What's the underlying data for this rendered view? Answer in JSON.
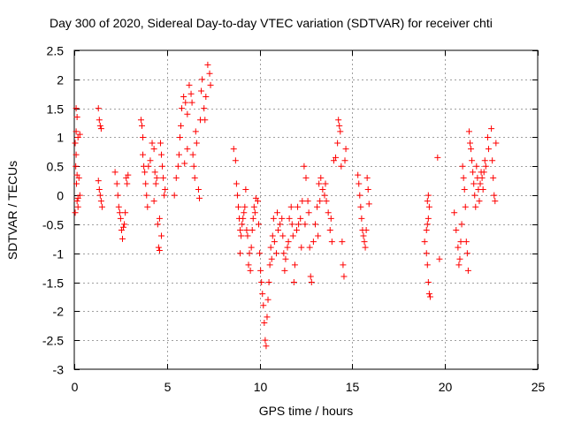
{
  "chart_data": {
    "type": "scatter",
    "title": "Day 300 of 2020, Sidereal Day-to-day VTEC variation (SDTVAR) for receiver chti",
    "xlabel": "GPS time / hours",
    "ylabel": "SDTVAR / TECUs",
    "xlim": [
      0,
      25
    ],
    "ylim": [
      -3,
      2.5
    ],
    "xticks": [
      0,
      5,
      10,
      15,
      20,
      25
    ],
    "xtick_labels": [
      "0",
      "5",
      "10",
      "15",
      "20",
      "25"
    ],
    "yticks": [
      -3,
      -2.5,
      -2,
      -1.5,
      -1,
      -0.5,
      0,
      0.5,
      1,
      1.5,
      2,
      2.5
    ],
    "ytick_labels": [
      "-3",
      "-2.5",
      "-2",
      "-1.5",
      "-1",
      "-0.5",
      "0",
      "0.5",
      "1",
      "1.5",
      "2",
      "2.5"
    ],
    "grid": true,
    "marker": "+",
    "color": "#ff0000",
    "series": [
      {
        "name": "SDTVAR",
        "points": [
          [
            0.05,
            -0.3
          ],
          [
            0.1,
            1.5
          ],
          [
            0.15,
            1.35
          ],
          [
            0.1,
            1.1
          ],
          [
            0.2,
            1.0
          ],
          [
            0.3,
            1.05
          ],
          [
            0.08,
            0.5
          ],
          [
            0.12,
            0.2
          ],
          [
            0.15,
            -0.1
          ],
          [
            0.2,
            -0.2
          ],
          [
            0.05,
            0.9
          ],
          [
            0.1,
            0.7
          ],
          [
            0.25,
            0.3
          ],
          [
            0.3,
            0.0
          ],
          [
            0.2,
            -0.05
          ],
          [
            0.15,
            0.35
          ],
          [
            1.3,
            1.5
          ],
          [
            1.35,
            1.3
          ],
          [
            1.4,
            1.2
          ],
          [
            1.45,
            1.15
          ],
          [
            1.3,
            0.25
          ],
          [
            1.35,
            0.1
          ],
          [
            1.4,
            0.0
          ],
          [
            1.45,
            -0.1
          ],
          [
            1.5,
            -0.2
          ],
          [
            2.2,
            0.4
          ],
          [
            2.3,
            0.2
          ],
          [
            2.35,
            0.0
          ],
          [
            2.4,
            -0.2
          ],
          [
            2.5,
            -0.4
          ],
          [
            2.55,
            -0.6
          ],
          [
            2.6,
            -0.75
          ],
          [
            2.7,
            -0.5
          ],
          [
            2.75,
            -0.3
          ],
          [
            2.8,
            0.3
          ],
          [
            2.85,
            0.2
          ],
          [
            2.9,
            0.35
          ],
          [
            2.65,
            -0.55
          ],
          [
            2.45,
            -0.3
          ],
          [
            3.6,
            1.3
          ],
          [
            3.65,
            1.2
          ],
          [
            3.7,
            1.0
          ],
          [
            3.7,
            0.7
          ],
          [
            3.75,
            0.5
          ],
          [
            3.8,
            0.4
          ],
          [
            3.85,
            0.2
          ],
          [
            3.9,
            0.0
          ],
          [
            3.95,
            -0.2
          ],
          [
            4.0,
            0.5
          ],
          [
            4.1,
            0.6
          ],
          [
            4.2,
            0.9
          ],
          [
            4.3,
            0.8
          ],
          [
            4.35,
            0.4
          ],
          [
            4.4,
            0.2
          ],
          [
            4.45,
            0.3
          ],
          [
            4.5,
            -0.5
          ],
          [
            4.55,
            -0.9
          ],
          [
            4.6,
            -0.95
          ],
          [
            4.65,
            0.9
          ],
          [
            4.7,
            0.7
          ],
          [
            4.75,
            0.5
          ],
          [
            4.8,
            0.3
          ],
          [
            4.85,
            0.0
          ],
          [
            4.9,
            0.1
          ],
          [
            4.3,
            -0.1
          ],
          [
            4.6,
            -0.4
          ],
          [
            4.7,
            -0.7
          ],
          [
            5.4,
            0.0
          ],
          [
            5.5,
            0.3
          ],
          [
            5.6,
            0.5
          ],
          [
            5.7,
            1.0
          ],
          [
            5.75,
            1.2
          ],
          [
            5.8,
            1.5
          ],
          [
            5.9,
            1.7
          ],
          [
            6.0,
            1.6
          ],
          [
            6.1,
            1.4
          ],
          [
            6.2,
            1.9
          ],
          [
            6.3,
            1.75
          ],
          [
            6.35,
            1.6
          ],
          [
            6.4,
            0.7
          ],
          [
            6.45,
            0.5
          ],
          [
            6.5,
            0.3
          ],
          [
            6.55,
            1.1
          ],
          [
            6.6,
            0.9
          ],
          [
            6.7,
            0.1
          ],
          [
            6.75,
            -0.05
          ],
          [
            6.8,
            1.3
          ],
          [
            6.85,
            1.8
          ],
          [
            6.9,
            2.0
          ],
          [
            7.0,
            1.5
          ],
          [
            7.05,
            1.3
          ],
          [
            7.1,
            1.7
          ],
          [
            7.2,
            2.25
          ],
          [
            7.3,
            2.1
          ],
          [
            7.35,
            1.9
          ],
          [
            6.1,
            0.8
          ],
          [
            5.95,
            0.55
          ],
          [
            5.65,
            0.7
          ],
          [
            8.6,
            0.8
          ],
          [
            8.7,
            0.6
          ],
          [
            8.75,
            0.2
          ],
          [
            8.8,
            0.0
          ],
          [
            8.85,
            -0.2
          ],
          [
            8.9,
            -0.4
          ],
          [
            8.95,
            -0.6
          ],
          [
            9.0,
            -0.7
          ],
          [
            9.05,
            -0.5
          ],
          [
            9.1,
            -0.4
          ],
          [
            9.15,
            -0.3
          ],
          [
            9.2,
            -0.2
          ],
          [
            9.3,
            -0.6
          ],
          [
            9.35,
            -0.7
          ],
          [
            9.4,
            -1.2
          ],
          [
            9.5,
            -1.3
          ],
          [
            9.55,
            -0.9
          ],
          [
            9.6,
            -0.6
          ],
          [
            9.65,
            -0.4
          ],
          [
            9.7,
            -0.2
          ],
          [
            9.8,
            -0.05
          ],
          [
            9.9,
            -0.1
          ],
          [
            9.95,
            -0.5
          ],
          [
            10.0,
            -1.0
          ],
          [
            10.05,
            -1.3
          ],
          [
            10.1,
            -1.5
          ],
          [
            10.15,
            -1.7
          ],
          [
            10.2,
            -1.9
          ],
          [
            10.25,
            -2.2
          ],
          [
            10.3,
            -2.5
          ],
          [
            10.35,
            -2.6
          ],
          [
            10.4,
            -2.1
          ],
          [
            10.45,
            -1.8
          ],
          [
            10.5,
            -1.5
          ],
          [
            10.55,
            -1.2
          ],
          [
            10.6,
            -0.9
          ],
          [
            10.7,
            -0.7
          ],
          [
            10.8,
            -0.8
          ],
          [
            10.9,
            -1.0
          ],
          [
            11.0,
            -0.6
          ],
          [
            11.1,
            -0.5
          ],
          [
            11.2,
            -0.4
          ],
          [
            11.3,
            -1.0
          ],
          [
            11.4,
            -1.1
          ],
          [
            11.5,
            -0.9
          ],
          [
            11.6,
            -0.4
          ],
          [
            11.7,
            -0.2
          ],
          [
            11.8,
            -0.7
          ],
          [
            11.9,
            -1.2
          ],
          [
            12.0,
            -0.6
          ],
          [
            12.1,
            -0.5
          ],
          [
            12.2,
            -0.4
          ],
          [
            12.3,
            -0.1
          ],
          [
            12.4,
            0.5
          ],
          [
            12.5,
            0.3
          ],
          [
            12.6,
            -0.1
          ],
          [
            12.7,
            -0.9
          ],
          [
            12.75,
            -1.4
          ],
          [
            12.8,
            -1.5
          ],
          [
            12.9,
            -0.8
          ],
          [
            13.0,
            -0.5
          ],
          [
            13.1,
            -0.2
          ],
          [
            13.2,
            0.2
          ],
          [
            13.3,
            0.3
          ],
          [
            13.4,
            0.1
          ],
          [
            13.5,
            0.0
          ],
          [
            13.6,
            -0.1
          ],
          [
            13.7,
            -0.3
          ],
          [
            13.8,
            -0.6
          ],
          [
            13.9,
            -0.8
          ],
          [
            14.0,
            0.6
          ],
          [
            14.1,
            0.65
          ],
          [
            14.2,
            0.9
          ],
          [
            14.25,
            1.3
          ],
          [
            14.3,
            1.2
          ],
          [
            14.35,
            1.1
          ],
          [
            14.4,
            0.5
          ],
          [
            14.45,
            -0.8
          ],
          [
            14.5,
            -1.2
          ],
          [
            14.55,
            -1.4
          ],
          [
            14.6,
            0.6
          ],
          [
            14.65,
            0.8
          ],
          [
            10.75,
            -0.4
          ],
          [
            11.25,
            -0.7
          ],
          [
            11.75,
            -0.5
          ],
          [
            12.25,
            -0.9
          ],
          [
            9.25,
            0.1
          ],
          [
            9.75,
            -0.3
          ],
          [
            10.95,
            -0.3
          ],
          [
            11.55,
            -0.8
          ],
          [
            12.05,
            -0.2
          ],
          [
            12.45,
            -0.5
          ],
          [
            13.25,
            -0.1
          ],
          [
            13.55,
            0.2
          ],
          [
            13.85,
            -0.4
          ],
          [
            8.95,
            -1.0
          ],
          [
            9.45,
            -1.0
          ],
          [
            10.65,
            -1.1
          ],
          [
            11.35,
            -1.3
          ],
          [
            11.85,
            -1.5
          ],
          [
            12.65,
            -0.3
          ],
          [
            13.15,
            -0.7
          ],
          [
            15.3,
            0.35
          ],
          [
            15.35,
            0.2
          ],
          [
            15.4,
            0.0
          ],
          [
            15.45,
            -0.2
          ],
          [
            15.5,
            -0.4
          ],
          [
            15.55,
            -0.6
          ],
          [
            15.6,
            -0.7
          ],
          [
            15.65,
            -0.8
          ],
          [
            15.7,
            -0.9
          ],
          [
            15.75,
            -0.6
          ],
          [
            15.8,
            0.3
          ],
          [
            15.85,
            0.1
          ],
          [
            15.9,
            -0.15
          ],
          [
            18.9,
            -0.8
          ],
          [
            19.0,
            -0.6
          ],
          [
            19.05,
            -0.5
          ],
          [
            19.1,
            -0.4
          ],
          [
            19.15,
            -0.2
          ],
          [
            19.0,
            -1.0
          ],
          [
            19.05,
            -1.2
          ],
          [
            19.1,
            -1.5
          ],
          [
            19.15,
            -1.7
          ],
          [
            19.2,
            -1.75
          ],
          [
            19.1,
            0.0
          ],
          [
            19.05,
            -0.1
          ],
          [
            19.6,
            0.65
          ],
          [
            19.7,
            -1.1
          ],
          [
            20.5,
            -0.3
          ],
          [
            20.6,
            -0.6
          ],
          [
            20.7,
            -0.9
          ],
          [
            20.75,
            -1.2
          ],
          [
            20.8,
            -1.1
          ],
          [
            20.85,
            -0.8
          ],
          [
            20.9,
            -0.5
          ],
          [
            20.95,
            0.5
          ],
          [
            21.0,
            0.3
          ],
          [
            21.05,
            0.1
          ],
          [
            21.1,
            -0.2
          ],
          [
            21.15,
            -0.8
          ],
          [
            21.2,
            -1.0
          ],
          [
            21.25,
            -1.3
          ],
          [
            21.3,
            1.1
          ],
          [
            21.35,
            0.9
          ],
          [
            21.4,
            0.8
          ],
          [
            21.45,
            0.6
          ],
          [
            21.5,
            0.4
          ],
          [
            21.55,
            0.2
          ],
          [
            21.6,
            0.0
          ],
          [
            21.65,
            -0.2
          ],
          [
            21.7,
            0.5
          ],
          [
            21.75,
            0.3
          ],
          [
            21.8,
            0.1
          ],
          [
            21.85,
            -0.1
          ],
          [
            21.9,
            0.2
          ],
          [
            21.95,
            0.4
          ],
          [
            22.0,
            0.3
          ],
          [
            22.05,
            0.1
          ],
          [
            22.1,
            0.4
          ],
          [
            22.15,
            0.6
          ],
          [
            22.2,
            0.5
          ],
          [
            22.3,
            1.0
          ],
          [
            22.35,
            0.8
          ],
          [
            22.5,
            1.15
          ],
          [
            22.55,
            0.6
          ],
          [
            22.6,
            0.3
          ],
          [
            22.65,
            0.0
          ],
          [
            22.7,
            -0.1
          ],
          [
            22.75,
            0.9
          ]
        ]
      }
    ]
  }
}
